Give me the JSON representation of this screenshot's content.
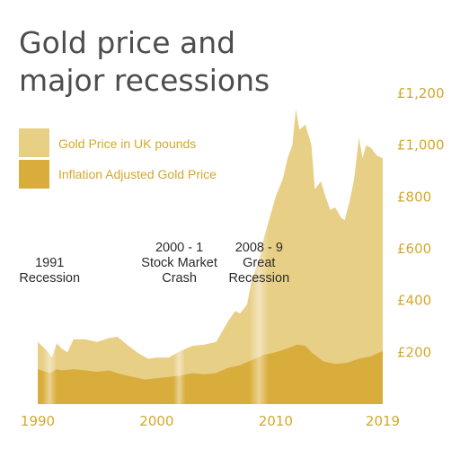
{
  "chart_data": {
    "type": "area",
    "title_lines": [
      "Gold price and",
      "major recessions"
    ],
    "xlim": [
      1990,
      2019
    ],
    "ylim": [
      0,
      1200
    ],
    "x_ticks": [
      1990,
      2000,
      2010,
      2019
    ],
    "y_ticks": [
      {
        "value": 200,
        "label": "£200"
      },
      {
        "value": 400,
        "label": "£400"
      },
      {
        "value": 600,
        "label": "£600"
      },
      {
        "value": 800,
        "label": "£800"
      },
      {
        "value": 1000,
        "label": "£1,000"
      },
      {
        "value": 1200,
        "label": "£1,200"
      }
    ],
    "series": [
      {
        "name": "Gold Price in UK pounds",
        "color": "#e8cf86",
        "points": [
          [
            1990,
            240
          ],
          [
            1990.7,
            210
          ],
          [
            1991.2,
            180
          ],
          [
            1991.6,
            235
          ],
          [
            1992,
            215
          ],
          [
            1992.5,
            200
          ],
          [
            1993,
            250
          ],
          [
            1994,
            250
          ],
          [
            1995,
            240
          ],
          [
            1996,
            255
          ],
          [
            1996.7,
            260
          ],
          [
            1997.5,
            230
          ],
          [
            1998.5,
            195
          ],
          [
            1999.3,
            175
          ],
          [
            2000,
            180
          ],
          [
            2001,
            180
          ],
          [
            2002,
            205
          ],
          [
            2003,
            225
          ],
          [
            2004,
            230
          ],
          [
            2005,
            240
          ],
          [
            2006,
            320
          ],
          [
            2006.6,
            360
          ],
          [
            2007,
            350
          ],
          [
            2007.6,
            385
          ],
          [
            2008,
            480
          ],
          [
            2008.6,
            560
          ],
          [
            2009,
            640
          ],
          [
            2009.5,
            720
          ],
          [
            2010,
            800
          ],
          [
            2010.6,
            870
          ],
          [
            2011,
            950
          ],
          [
            2011.4,
            1000
          ],
          [
            2011.7,
            1140
          ],
          [
            2012,
            1060
          ],
          [
            2012.5,
            1080
          ],
          [
            2013,
            1000
          ],
          [
            2013.3,
            830
          ],
          [
            2013.8,
            860
          ],
          [
            2014.2,
            800
          ],
          [
            2014.6,
            750
          ],
          [
            2015,
            760
          ],
          [
            2015.5,
            720
          ],
          [
            2015.8,
            710
          ],
          [
            2016.2,
            780
          ],
          [
            2016.6,
            870
          ],
          [
            2017,
            1030
          ],
          [
            2017.3,
            950
          ],
          [
            2017.6,
            1000
          ],
          [
            2018,
            990
          ],
          [
            2018.5,
            960
          ],
          [
            2019,
            950
          ]
        ]
      },
      {
        "name": "Inflation Adjusted Gold Price",
        "color": "#d9ad3b",
        "points": [
          [
            1990,
            135
          ],
          [
            1991,
            120
          ],
          [
            1991.6,
            135
          ],
          [
            1992,
            130
          ],
          [
            1993,
            135
          ],
          [
            1994,
            130
          ],
          [
            1995,
            125
          ],
          [
            1996,
            130
          ],
          [
            1997,
            115
          ],
          [
            1998,
            105
          ],
          [
            1999,
            95
          ],
          [
            2000,
            100
          ],
          [
            2001,
            105
          ],
          [
            2002,
            110
          ],
          [
            2003,
            120
          ],
          [
            2004,
            115
          ],
          [
            2005,
            120
          ],
          [
            2006,
            140
          ],
          [
            2007,
            150
          ],
          [
            2008,
            170
          ],
          [
            2009,
            190
          ],
          [
            2010,
            200
          ],
          [
            2011,
            215
          ],
          [
            2011.8,
            230
          ],
          [
            2012.5,
            225
          ],
          [
            2013,
            200
          ],
          [
            2014,
            165
          ],
          [
            2015,
            155
          ],
          [
            2016,
            160
          ],
          [
            2017,
            175
          ],
          [
            2018,
            185
          ],
          [
            2019,
            205
          ]
        ]
      }
    ],
    "recessions": [
      {
        "start": 1990.4,
        "end": 1991.6,
        "label_lines": [
          "1991",
          "Recession"
        ]
      },
      {
        "start": 2001.4,
        "end": 2002.4,
        "label_lines": [
          "2000 - 1",
          "Stock Market",
          "Crash"
        ]
      },
      {
        "start": 2007.8,
        "end": 2009.4,
        "label_lines": [
          "2008 - 9",
          "Great",
          "Recession"
        ]
      }
    ],
    "legend_position": "top-left",
    "axis_text_color": "#d4a82c",
    "grid": false
  }
}
